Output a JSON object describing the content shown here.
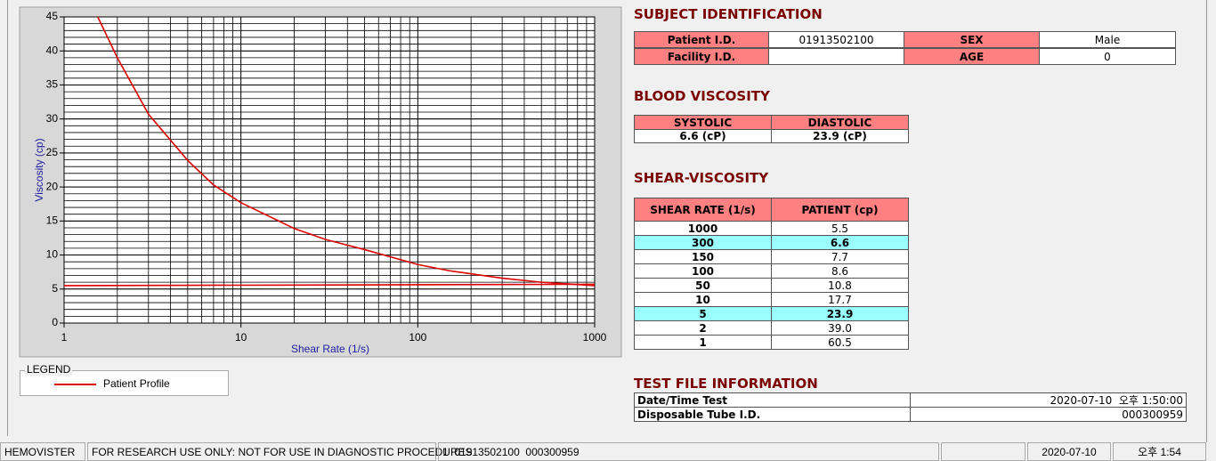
{
  "chart_data": {
    "type": "line",
    "xlabel": "Shear Rate (1/s)",
    "ylabel": "Viscosity (cp)",
    "log_x": true,
    "xlim": [
      1,
      1000
    ],
    "xticks": [
      1,
      10,
      100,
      1000
    ],
    "ylim": [
      0,
      45
    ],
    "yticks": [
      0,
      5,
      10,
      15,
      20,
      25,
      30,
      35,
      40,
      45
    ],
    "grid": true,
    "minor_grid": true,
    "series": [
      {
        "name": "Patient Profile",
        "color": "#dd0000",
        "x": [
          1.55,
          2,
          3,
          5,
          7,
          10,
          20,
          30,
          50,
          100,
          150,
          300,
          500,
          1000
        ],
        "values": [
          45,
          39,
          30.7,
          23.9,
          20.3,
          17.7,
          13.9,
          12.3,
          10.8,
          8.6,
          7.7,
          6.6,
          6,
          5.5
        ]
      },
      {
        "color": "#dd0000",
        "x": [
          1,
          1000
        ],
        "values": [
          5.5,
          5.7
        ]
      }
    ]
  },
  "legend_box": {
    "title": "LEGEND"
  },
  "subject": {
    "title": "SUBJECT IDENTIFICATION",
    "cells": [
      {
        "label": "Patient I.D.",
        "value": "01913502100"
      },
      {
        "label": "SEX",
        "value": "Male"
      },
      {
        "label": "Facility I.D."
      },
      {
        "label": "AGE",
        "value": "0"
      }
    ]
  },
  "blood": {
    "title": "BLOOD VISCOSITY",
    "headers": [
      "SYSTOLIC",
      "DIASTOLIC"
    ],
    "values": [
      "6.6 (cP)",
      "23.9 (cP)"
    ]
  },
  "shear": {
    "title": "SHEAR-VISCOSITY",
    "headers": [
      "SHEAR RATE (1/s)",
      "PATIENT (cp)"
    ],
    "rows": [
      {
        "rate": "1000",
        "value": "5.5"
      },
      {
        "rate": "300",
        "value": "6.6",
        "highlight": true
      },
      {
        "rate": "150",
        "value": "7.7"
      },
      {
        "rate": "100",
        "value": "8.6"
      },
      {
        "rate": "50",
        "value": "10.8"
      },
      {
        "rate": "10",
        "value": "17.7"
      },
      {
        "rate": "5",
        "value": "23.9",
        "highlight": true
      },
      {
        "rate": "2",
        "value": "39.0"
      },
      {
        "rate": "1",
        "value": "60.5"
      }
    ]
  },
  "test_file": {
    "title": "TEST FILE INFORMATION",
    "rows": [
      {
        "label": "Date/Time Test",
        "value": "2020-07-10  오후 1:50:00"
      },
      {
        "label": "Disposable Tube I.D.",
        "value": "000300959"
      }
    ]
  },
  "status_bar": {
    "app": "HEMOVISTER",
    "notice": "FOR RESEARCH USE ONLY: NOT FOR USE IN DIAGNOSTIC PROCEDURES",
    "record": "1  01913502100  000300959",
    "date": "2020-07-10",
    "time": "오후 1:54"
  }
}
